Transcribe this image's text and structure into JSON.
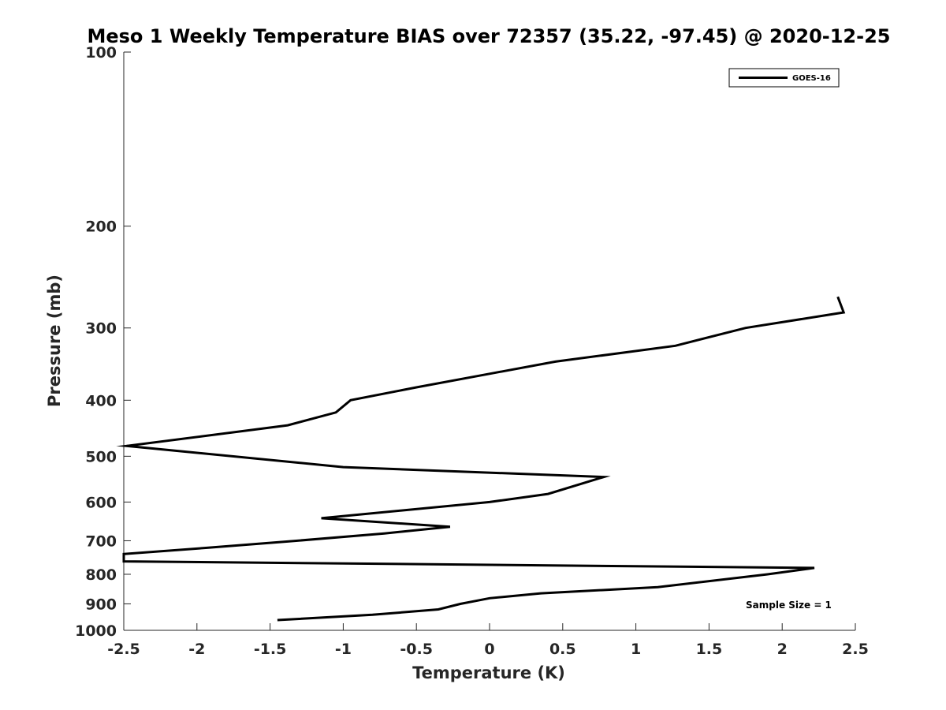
{
  "chart_data": {
    "type": "line",
    "title": "Meso 1 Weekly Temperature BIAS over 72357 (35.22, -97.45) @ 2020-12-25",
    "xlabel": "Temperature (K)",
    "ylabel": "Pressure (mb)",
    "xlim": [
      -2.5,
      2.5
    ],
    "ylim": [
      100,
      1000
    ],
    "yscale": "log",
    "y_reversed": true,
    "grid": false,
    "x_ticks": [
      -2.5,
      -2,
      -1.5,
      -1,
      -0.5,
      0,
      0.5,
      1,
      1.5,
      2,
      2.5
    ],
    "x_tick_labels": [
      "-2.5",
      "-2",
      "-1.5",
      "-1",
      "-0.5",
      "0",
      "0.5",
      "1",
      "1.5",
      "2",
      "2.5"
    ],
    "y_ticks": [
      100,
      200,
      300,
      400,
      500,
      600,
      700,
      800,
      900,
      1000
    ],
    "y_tick_labels": [
      "100",
      "200",
      "300",
      "400",
      "500",
      "600",
      "700",
      "800",
      "900",
      "1000"
    ],
    "legend": {
      "position": "top-right",
      "entries": [
        "GOES-16"
      ]
    },
    "annotation": "Sample Size = 1",
    "series": [
      {
        "name": "GOES-16",
        "color": "#000000",
        "points": [
          {
            "x": 2.38,
            "p": 265
          },
          {
            "x": 2.42,
            "p": 282
          },
          {
            "x": 1.75,
            "p": 300
          },
          {
            "x": 1.27,
            "p": 322
          },
          {
            "x": 0.45,
            "p": 343
          },
          {
            "x": 0.0,
            "p": 360
          },
          {
            "x": -0.5,
            "p": 380
          },
          {
            "x": -0.95,
            "p": 400
          },
          {
            "x": -1.05,
            "p": 420
          },
          {
            "x": -1.38,
            "p": 442
          },
          {
            "x": -2.48,
            "p": 480
          },
          {
            "x": -1.0,
            "p": 522
          },
          {
            "x": 0.78,
            "p": 543
          },
          {
            "x": 0.4,
            "p": 581
          },
          {
            "x": 0.0,
            "p": 600
          },
          {
            "x": -1.15,
            "p": 640
          },
          {
            "x": -0.27,
            "p": 662
          },
          {
            "x": -0.72,
            "p": 680
          },
          {
            "x": -1.38,
            "p": 702
          },
          {
            "x": -1.93,
            "p": 720
          },
          {
            "x": -2.5,
            "p": 738
          },
          {
            "x": -2.5,
            "p": 760
          },
          {
            "x": 2.22,
            "p": 780
          },
          {
            "x": 1.9,
            "p": 800
          },
          {
            "x": 1.15,
            "p": 842
          },
          {
            "x": 0.35,
            "p": 863
          },
          {
            "x": 0.0,
            "p": 880
          },
          {
            "x": -0.2,
            "p": 900
          },
          {
            "x": -0.35,
            "p": 920
          },
          {
            "x": -0.8,
            "p": 940
          },
          {
            "x": -1.45,
            "p": 960
          }
        ]
      }
    ]
  }
}
